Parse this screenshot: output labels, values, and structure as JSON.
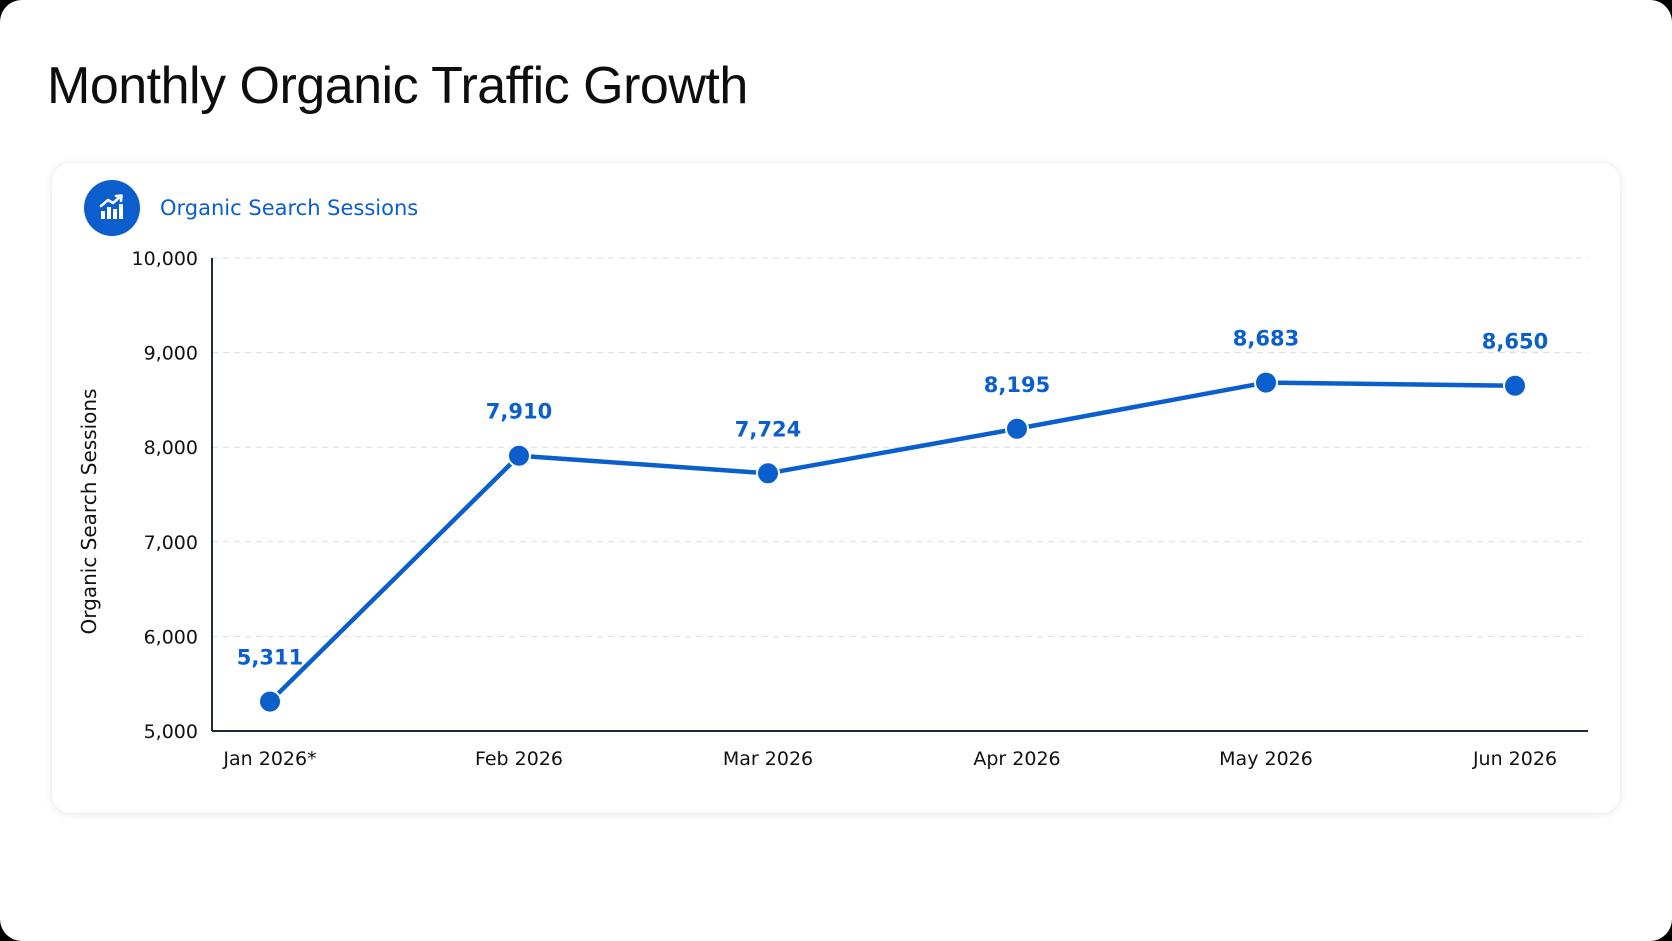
{
  "title": "Monthly Organic Traffic Growth",
  "card": {
    "header_label": "Organic Search Sessions",
    "header_icon": "bar-chart-trend-icon"
  },
  "colors": {
    "accent": "#0b5fcc",
    "axis": "#1f2937",
    "grid": "#d9dde3",
    "text": "#111111"
  },
  "chart_data": {
    "type": "line",
    "title": "",
    "xlabel": "",
    "ylabel": "Organic Search Sessions",
    "categories": [
      "Jan 2026*",
      "Feb 2026",
      "Mar 2026",
      "Apr 2026",
      "May 2026",
      "Jun 2026"
    ],
    "series": [
      {
        "values": [
          5311,
          7910,
          7724,
          8195,
          8683,
          8650
        ],
        "data_labels": [
          "5,311",
          "7,910",
          "7,724",
          "8,195",
          "8,683",
          "8,650"
        ]
      }
    ],
    "ylim": [
      5000,
      10000
    ],
    "yticks": [
      5000,
      6000,
      7000,
      8000,
      9000,
      10000
    ],
    "ytick_labels": [
      "5,000",
      "6,000",
      "7,000",
      "8,000",
      "9,000",
      "10,000"
    ],
    "grid": true,
    "grid_style": "dashed-horizontal",
    "legend": "none"
  }
}
